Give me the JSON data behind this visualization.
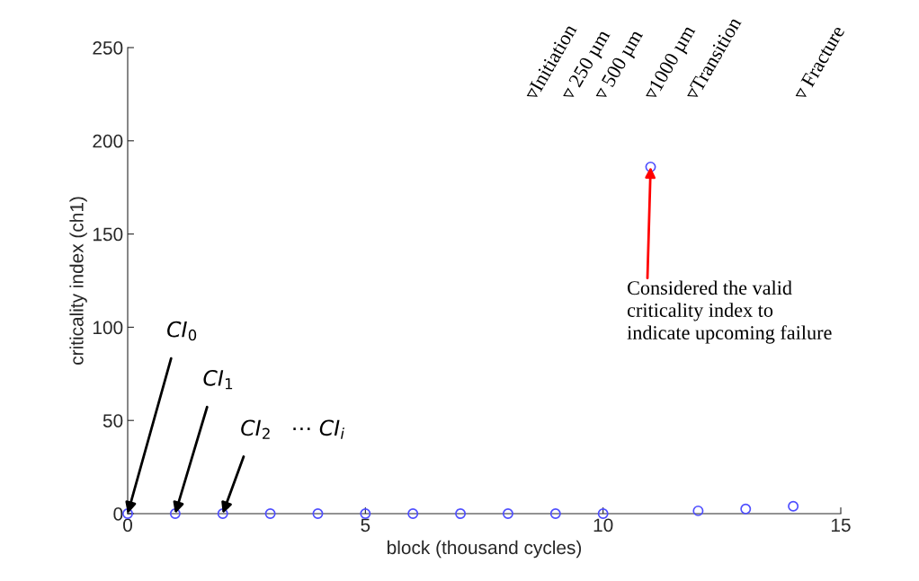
{
  "chart_data": {
    "type": "scatter",
    "xlabel": "block (thousand cycles)",
    "ylabel": "criticality index (ch1)",
    "x": [
      0,
      1,
      2,
      3,
      4,
      5,
      6,
      7,
      8,
      9,
      10,
      11,
      12,
      13,
      14
    ],
    "series": [
      {
        "color": "#4d4dff",
        "values": [
          0,
          0,
          0,
          0,
          0,
          0,
          0,
          0,
          0,
          0,
          0,
          186,
          1.5,
          2.5,
          4
        ]
      }
    ],
    "marker": "circle",
    "xlim": [
      0,
      15
    ],
    "xticks": [
      0,
      5,
      10,
      15
    ],
    "ylim": [
      0,
      250
    ],
    "yticks": [
      0,
      50,
      100,
      150,
      200,
      250
    ],
    "grid": false,
    "annotations": [
      {
        "text": "CI$_{0}$",
        "x": 0,
        "y": 0
      },
      {
        "text": "CI$_{1}$",
        "x": 1,
        "y": 0
      },
      {
        "text": "CI$_{2}$",
        "x": 2,
        "y": 0
      },
      "⋯ CI$_{i}$",
      {
        "text": "Considered the valid\ncriticality index to\nindicate upcoming failure",
        "x": 11,
        "y": 186
      },
      "▿Initiation",
      "▿ 250 µm",
      "▿ 500 µm",
      "▿1000 µm",
      "▿Transition",
      "▿ Fracture"
    ]
  }
}
